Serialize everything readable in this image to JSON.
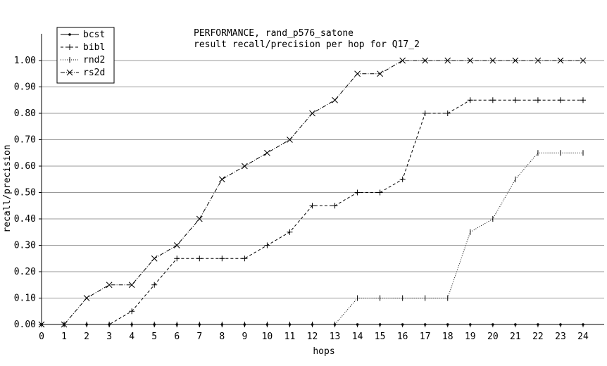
{
  "chart_data": {
    "type": "line",
    "title": "PERFORMANCE, rand_p576_satone",
    "subtitle": "result recall/precision per hop for Q17_2",
    "xlabel": "hops",
    "ylabel": "recall/precision",
    "x": [
      0,
      1,
      2,
      3,
      4,
      5,
      6,
      7,
      8,
      9,
      10,
      11,
      12,
      13,
      14,
      15,
      16,
      17,
      18,
      19,
      20,
      21,
      22,
      23,
      24
    ],
    "xlim": [
      0,
      24
    ],
    "ylim": [
      0,
      1.0
    ],
    "yticks": [
      "0.00",
      "0.10",
      "0.20",
      "0.30",
      "0.40",
      "0.50",
      "0.60",
      "0.70",
      "0.80",
      "0.90",
      "1.00"
    ],
    "grid": "horizontal",
    "legend_position": "top-left",
    "series": [
      {
        "name": "bcst",
        "marker": "dot",
        "dash": "none",
        "values": [
          0,
          0,
          0,
          0,
          0,
          0,
          0,
          0,
          0,
          0,
          0,
          0,
          0,
          0,
          0,
          0,
          0,
          0,
          0,
          0,
          0,
          0,
          0,
          0,
          0
        ]
      },
      {
        "name": "bibl",
        "marker": "plus",
        "dash": "dashed",
        "values": [
          0,
          0,
          0,
          0,
          0.05,
          0.15,
          0.25,
          0.25,
          0.25,
          0.25,
          0.3,
          0.35,
          0.45,
          0.45,
          0.5,
          0.5,
          0.55,
          0.8,
          0.8,
          0.85,
          0.85,
          0.85,
          0.85,
          0.85,
          0.85
        ]
      },
      {
        "name": "rnd2",
        "marker": "tick",
        "dash": "dotted",
        "values": [
          0,
          0,
          0,
          0,
          0,
          0,
          0,
          0,
          0,
          0,
          0,
          0,
          0,
          0,
          0.1,
          0.1,
          0.1,
          0.1,
          0.1,
          0.35,
          0.4,
          0.55,
          0.65,
          0.65,
          0.65
        ]
      },
      {
        "name": "rs2d",
        "marker": "x",
        "dash": "dashdot",
        "values": [
          0,
          0,
          0.1,
          0.15,
          0.15,
          0.25,
          0.3,
          0.4,
          0.55,
          0.6,
          0.65,
          0.7,
          0.8,
          0.85,
          0.95,
          0.95,
          1.0,
          1.0,
          1.0,
          1.0,
          1.0,
          1.0,
          1.0,
          1.0,
          1.0
        ]
      }
    ]
  }
}
